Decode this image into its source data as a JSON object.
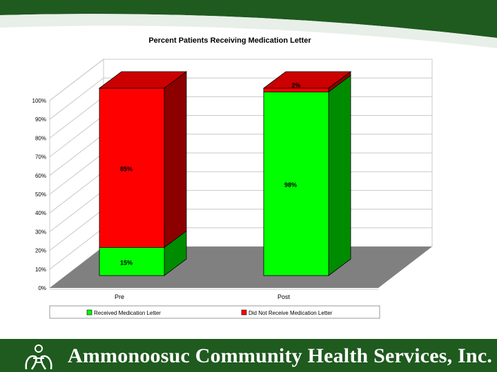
{
  "footer": {
    "organization": "Ammonoosuc Community Health Services, Inc."
  },
  "colors": {
    "background": "#1f5a1f",
    "slide": "#ffffff",
    "received": "#00ff00",
    "not_received": "#ff0000",
    "floor": "#808080"
  },
  "chart_data": {
    "type": "bar",
    "stacked": true,
    "three_d": true,
    "title": "Percent Patients Receiving Medication Letter",
    "xlabel": "",
    "ylabel": "",
    "categories": [
      "Pre",
      "Post"
    ],
    "ylim": [
      0,
      100
    ],
    "yticks": [
      "0%",
      "10%",
      "20%",
      "30%",
      "40%",
      "50%",
      "60%",
      "70%",
      "80%",
      "90%",
      "100%"
    ],
    "series": [
      {
        "name": "Received Medication Letter",
        "values": [
          15,
          98
        ],
        "labels": [
          "15%",
          "98%"
        ],
        "color": "#00ff00"
      },
      {
        "name": "Did Not Receive Medication Letter",
        "values": [
          85,
          2
        ],
        "labels": [
          "85%",
          "2%"
        ],
        "color": "#ff0000"
      }
    ],
    "grid": true,
    "legend_position": "bottom"
  }
}
